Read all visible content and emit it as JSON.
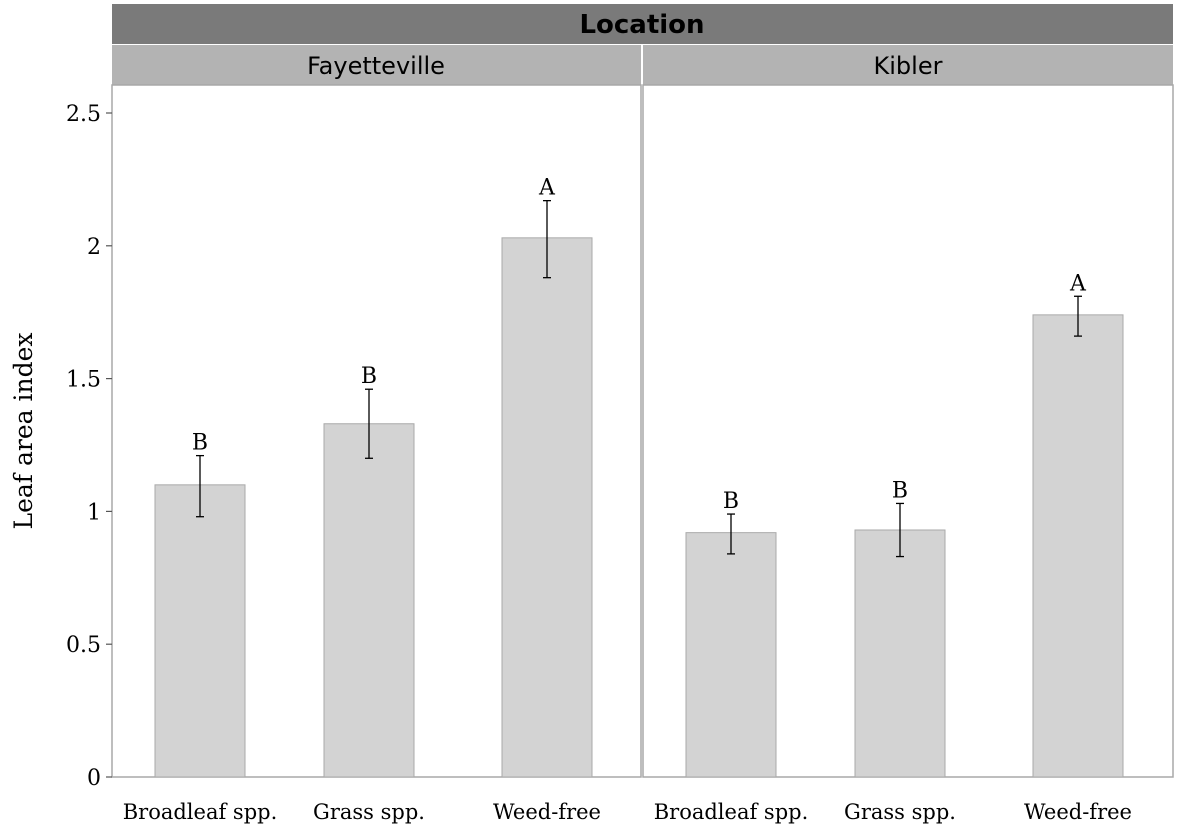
{
  "chart_data": {
    "type": "bar",
    "facet_header": "Location",
    "ylabel": "Leaf area index",
    "ylim": [
      0,
      2.6
    ],
    "yticks": [
      {
        "value": 0,
        "label": "0"
      },
      {
        "value": 0.5,
        "label": "0.5"
      },
      {
        "value": 1,
        "label": "1"
      },
      {
        "value": 1.5,
        "label": "1.5"
      },
      {
        "value": 2,
        "label": "2"
      },
      {
        "value": 2.5,
        "label": "2.5"
      }
    ],
    "bar_color": "#d3d3d3",
    "header_color": "#7a7a7a",
    "subheader_color": "#b3b3b3",
    "panels": [
      {
        "name": "Fayetteville",
        "bars": [
          {
            "category": "Broadleaf spp.",
            "value": 1.1,
            "err_low": 0.98,
            "err_high": 1.21,
            "letter": "B"
          },
          {
            "category": "Grass spp.",
            "value": 1.33,
            "err_low": 1.2,
            "err_high": 1.46,
            "letter": "B"
          },
          {
            "category": "Weed-free",
            "value": 2.03,
            "err_low": 1.88,
            "err_high": 2.17,
            "letter": "A"
          }
        ]
      },
      {
        "name": "Kibler",
        "bars": [
          {
            "category": "Broadleaf spp.",
            "value": 0.92,
            "err_low": 0.84,
            "err_high": 0.99,
            "letter": "B"
          },
          {
            "category": "Grass spp.",
            "value": 0.93,
            "err_low": 0.83,
            "err_high": 1.03,
            "letter": "B"
          },
          {
            "category": "Weed-free",
            "value": 1.74,
            "err_low": 1.66,
            "err_high": 1.81,
            "letter": "A"
          }
        ]
      }
    ]
  }
}
